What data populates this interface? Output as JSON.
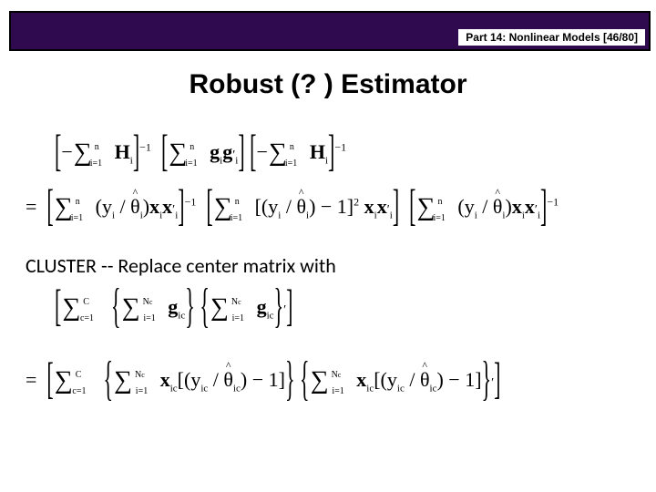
{
  "header": {
    "text": "Part 14: Nonlinear Models [46/80]",
    "bg": "#2f0a4f"
  },
  "title": "Robust (? ) Estimator",
  "cluster_text": "CLUSTER  --  Replace center matrix with",
  "sym": {
    "n": "n",
    "i1": "i=1",
    "H": "H",
    "g": "g",
    "y": "y",
    "th": "θ",
    "x": "x",
    "C": "C",
    "c1": "c=1",
    "Nc": "N",
    "ic": "ic",
    "minus_one": "−1",
    "two": "2",
    "eq": "=",
    "neg": "−",
    "slash": " / ",
    "open_sq": "[",
    "close_sq": "]",
    "open_br": "{",
    "close_br": "}",
    "residual": ") − 1]"
  }
}
